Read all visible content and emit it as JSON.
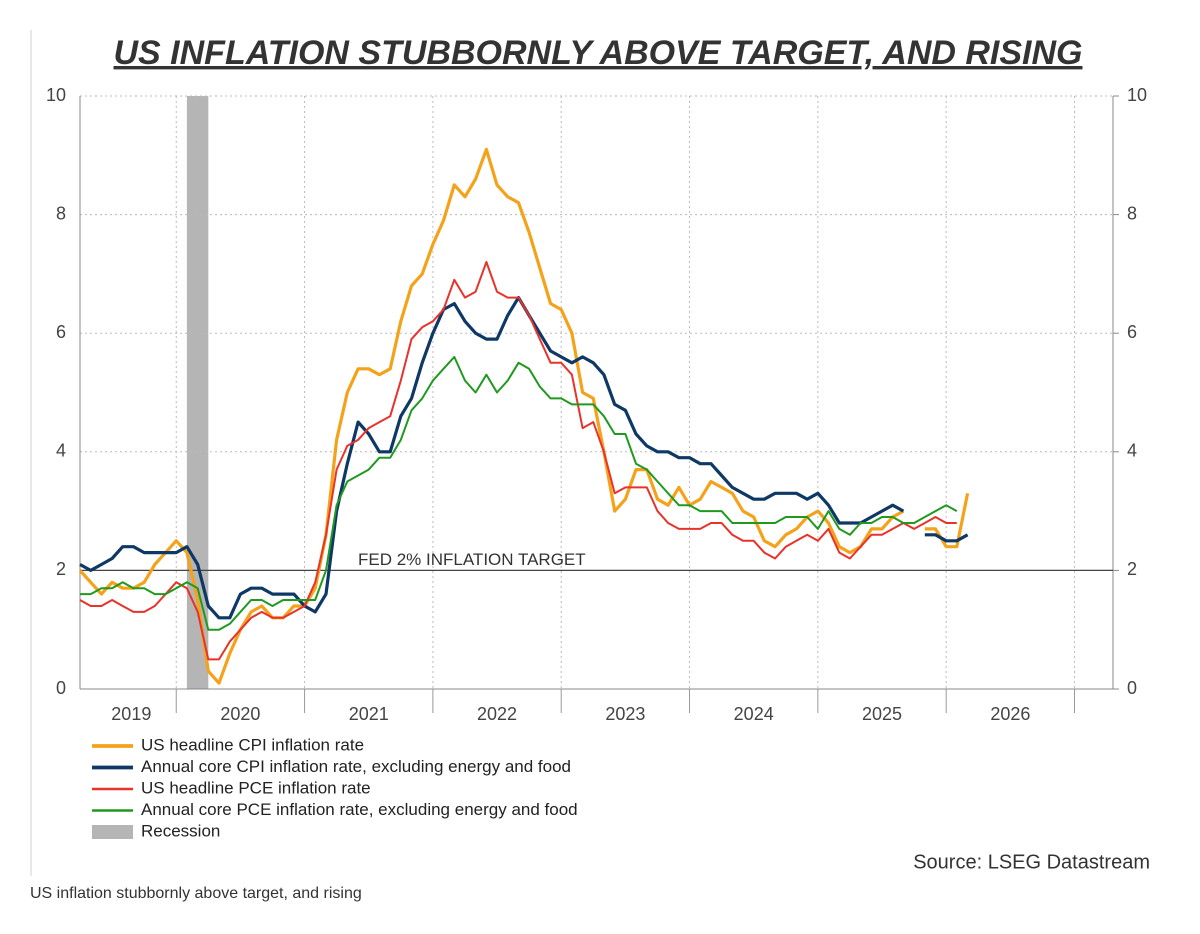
{
  "chart_data": {
    "type": "line",
    "title": "US INFLATION STUBBORNLY ABOVE TARGET, AND RISING",
    "source": "Source: LSEG Datastream",
    "caption": "US inflation stubbornly above target, and rising",
    "x": [
      2019.25,
      2019.333,
      2019.417,
      2019.5,
      2019.583,
      2019.667,
      2019.75,
      2019.833,
      2019.917,
      2020.0,
      2020.083,
      2020.167,
      2020.25,
      2020.333,
      2020.417,
      2020.5,
      2020.583,
      2020.667,
      2020.75,
      2020.833,
      2020.917,
      2021.0,
      2021.083,
      2021.167,
      2021.25,
      2021.333,
      2021.417,
      2021.5,
      2021.583,
      2021.667,
      2021.75,
      2021.833,
      2021.917,
      2022.0,
      2022.083,
      2022.167,
      2022.25,
      2022.333,
      2022.417,
      2022.5,
      2022.583,
      2022.667,
      2022.75,
      2022.833,
      2022.917,
      2023.0,
      2023.083,
      2023.167,
      2023.25,
      2023.333,
      2023.417,
      2023.5,
      2023.583,
      2023.667,
      2023.75,
      2023.833,
      2023.917,
      2024.0,
      2024.083,
      2024.167,
      2024.25,
      2024.333,
      2024.417,
      2024.5,
      2024.583,
      2024.667,
      2024.75,
      2024.833,
      2024.917,
      2025.0,
      2025.083,
      2025.167,
      2025.25,
      2025.333,
      2025.417,
      2025.5,
      2025.583,
      2025.667,
      2025.75,
      2025.833,
      2025.917,
      2026.0,
      2026.083,
      2026.167
    ],
    "series": [
      {
        "name": "US headline CPI inflation rate",
        "color": "#f5a21b",
        "width": 3.2,
        "values": [
          2.0,
          1.8,
          1.6,
          1.8,
          1.7,
          1.7,
          1.8,
          2.1,
          2.3,
          2.5,
          2.3,
          1.5,
          0.3,
          0.1,
          0.6,
          1.0,
          1.3,
          1.4,
          1.2,
          1.2,
          1.4,
          1.4,
          1.7,
          2.6,
          4.2,
          5.0,
          5.4,
          5.4,
          5.3,
          5.4,
          6.2,
          6.8,
          7.0,
          7.5,
          7.9,
          8.5,
          8.3,
          8.6,
          9.1,
          8.5,
          8.3,
          8.2,
          7.7,
          7.1,
          6.5,
          6.4,
          6.0,
          5.0,
          4.9,
          4.0,
          3.0,
          3.2,
          3.7,
          3.7,
          3.2,
          3.1,
          3.4,
          3.1,
          3.2,
          3.5,
          3.4,
          3.3,
          3.0,
          2.9,
          2.5,
          2.4,
          2.6,
          2.7,
          2.9,
          3.0,
          2.8,
          2.4,
          2.3,
          2.4,
          2.7,
          2.7,
          2.9,
          3.0,
          null,
          2.7,
          2.7,
          2.4,
          2.4,
          3.3
        ]
      },
      {
        "name": "Annual core CPI inflation rate, excluding energy and food",
        "color": "#0e3866",
        "width": 3.2,
        "values": [
          2.1,
          2.0,
          2.1,
          2.2,
          2.4,
          2.4,
          2.3,
          2.3,
          2.3,
          2.3,
          2.4,
          2.1,
          1.4,
          1.2,
          1.2,
          1.6,
          1.7,
          1.7,
          1.6,
          1.6,
          1.6,
          1.4,
          1.3,
          1.6,
          3.0,
          3.8,
          4.5,
          4.3,
          4.0,
          4.0,
          4.6,
          4.9,
          5.5,
          6.0,
          6.4,
          6.5,
          6.2,
          6.0,
          5.9,
          5.9,
          6.3,
          6.6,
          6.3,
          6.0,
          5.7,
          5.6,
          5.5,
          5.6,
          5.5,
          5.3,
          4.8,
          4.7,
          4.3,
          4.1,
          4.0,
          4.0,
          3.9,
          3.9,
          3.8,
          3.8,
          3.6,
          3.4,
          3.3,
          3.2,
          3.2,
          3.3,
          3.3,
          3.3,
          3.2,
          3.3,
          3.1,
          2.8,
          2.8,
          2.8,
          2.9,
          3.0,
          3.1,
          3.0,
          null,
          2.6,
          2.6,
          2.5,
          2.5,
          2.6
        ]
      },
      {
        "name": "US headline PCE inflation rate",
        "color": "#e8322a",
        "width": 2,
        "values": [
          1.5,
          1.4,
          1.4,
          1.5,
          1.4,
          1.3,
          1.3,
          1.4,
          1.6,
          1.8,
          1.7,
          1.3,
          0.5,
          0.5,
          0.8,
          1.0,
          1.2,
          1.3,
          1.2,
          1.2,
          1.3,
          1.4,
          1.8,
          2.6,
          3.7,
          4.1,
          4.2,
          4.4,
          4.5,
          4.6,
          5.2,
          5.9,
          6.1,
          6.2,
          6.4,
          6.9,
          6.6,
          6.7,
          7.2,
          6.7,
          6.6,
          6.6,
          6.3,
          5.9,
          5.5,
          5.5,
          5.3,
          4.4,
          4.5,
          4.0,
          3.3,
          3.4,
          3.4,
          3.4,
          3.0,
          2.8,
          2.7,
          2.7,
          2.7,
          2.8,
          2.8,
          2.6,
          2.5,
          2.5,
          2.3,
          2.2,
          2.4,
          2.5,
          2.6,
          2.5,
          2.7,
          2.3,
          2.2,
          2.4,
          2.6,
          2.6,
          2.7,
          2.8,
          2.7,
          2.8,
          2.9,
          2.8,
          2.8,
          null
        ]
      },
      {
        "name": "Annual core PCE inflation rate, excluding energy and food",
        "color": "#1f9a1f",
        "width": 2,
        "values": [
          1.6,
          1.6,
          1.7,
          1.7,
          1.8,
          1.7,
          1.7,
          1.6,
          1.6,
          1.7,
          1.8,
          1.7,
          1.0,
          1.0,
          1.1,
          1.3,
          1.5,
          1.5,
          1.4,
          1.5,
          1.5,
          1.5,
          1.5,
          2.0,
          3.1,
          3.5,
          3.6,
          3.7,
          3.9,
          3.9,
          4.2,
          4.7,
          4.9,
          5.2,
          5.4,
          5.6,
          5.2,
          5.0,
          5.3,
          5.0,
          5.2,
          5.5,
          5.4,
          5.1,
          4.9,
          4.9,
          4.8,
          4.8,
          4.8,
          4.6,
          4.3,
          4.3,
          3.8,
          3.7,
          3.5,
          3.3,
          3.1,
          3.1,
          3.0,
          3.0,
          3.0,
          2.8,
          2.8,
          2.8,
          2.8,
          2.8,
          2.9,
          2.9,
          2.9,
          2.7,
          3.0,
          2.7,
          2.6,
          2.8,
          2.8,
          2.9,
          2.9,
          2.8,
          2.8,
          2.9,
          3.0,
          3.1,
          3.0,
          null
        ]
      }
    ],
    "recession": {
      "name": "Recession",
      "start": 2020.083,
      "end": 2020.25,
      "color": "#b5b5b5"
    },
    "target": {
      "value": 2,
      "label": "FED 2% INFLATION TARGET"
    },
    "xlim": [
      2019.25,
      2027.3
    ],
    "xticks": [
      {
        "value": 2019.65,
        "label": "2019"
      },
      {
        "value": 2020.5,
        "label": "2020"
      },
      {
        "value": 2021.5,
        "label": "2021"
      },
      {
        "value": 2022.5,
        "label": "2022"
      },
      {
        "value": 2023.5,
        "label": "2023"
      },
      {
        "value": 2024.5,
        "label": "2024"
      },
      {
        "value": 2025.5,
        "label": "2025"
      },
      {
        "value": 2026.5,
        "label": "2026"
      }
    ],
    "xgrid": [
      2020,
      2021,
      2022,
      2023,
      2024,
      2025,
      2026,
      2027
    ],
    "ylim": [
      0,
      10
    ],
    "yticks": [
      0,
      2,
      4,
      6,
      8,
      10
    ],
    "y2lim": [
      0,
      10
    ],
    "y2ticks": [
      0,
      2,
      4,
      6,
      8,
      10
    ],
    "grid": true
  }
}
